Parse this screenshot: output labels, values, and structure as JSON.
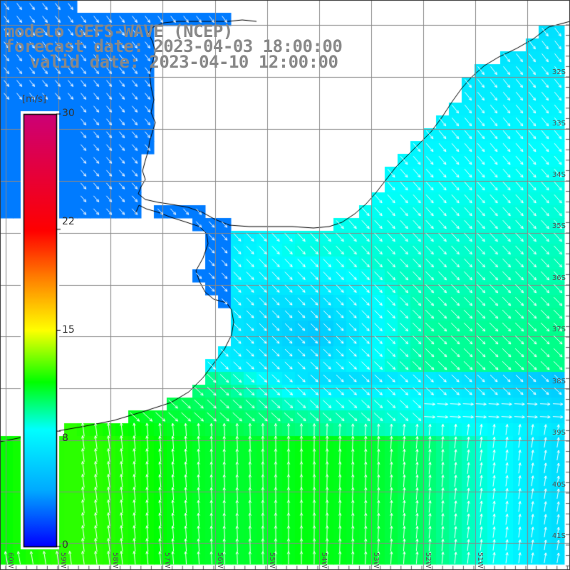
{
  "title": {
    "line1": "modelo GEFS-WAVE (NCEP)",
    "line2": "forecast date: 2023-04-03 18:00:00",
    "line3": "valid date: 2023-04-10 12:00:00"
  },
  "colorbar": {
    "unit": "[m/s]",
    "ticks": [
      "30",
      "22",
      "15",
      "8",
      "0"
    ],
    "tick_values": [
      30,
      22,
      15,
      8,
      0
    ],
    "colors": [
      "#0000ff",
      "#00aaff",
      "#00ffff",
      "#00ff00",
      "#ffff00",
      "#ff8000",
      "#ff0000",
      "#cc0077"
    ]
  },
  "lat_labels": [
    "32S",
    "33S",
    "34S",
    "35S",
    "36S",
    "37S",
    "38S",
    "39S",
    "40S",
    "41S"
  ],
  "lon_labels": [
    "60W",
    "59W",
    "58W",
    "57W",
    "56W",
    "55W",
    "54W",
    "53W",
    "52W",
    "51W"
  ],
  "colors": {
    "land": "#ffffff",
    "coast": "#000000",
    "grid": "#888888",
    "arrows": "#ffffff",
    "title_text": "#888888"
  }
}
